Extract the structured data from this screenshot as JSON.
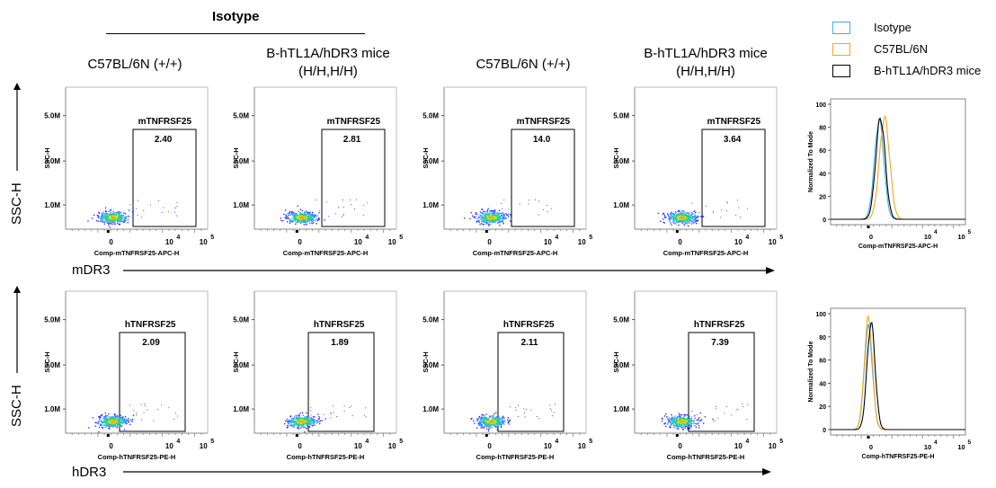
{
  "header": {
    "isotype": "Isotype",
    "columns": [
      [
        "C57BL/6N (+/+)"
      ],
      [
        "B-hTL1A/hDR3 mice",
        "(H/H,H/H)"
      ],
      [
        "C57BL/6N (+/+)"
      ],
      [
        "B-hTL1A/hDR3 mice",
        "(H/H,H/H)"
      ]
    ]
  },
  "legend": [
    {
      "label": "Isotype",
      "color": "#3fb0e0"
    },
    {
      "label": "C57BL/6N",
      "color": "#f5a623"
    },
    {
      "label": "B-hTL1A/hDR3 mice",
      "color": "#000000"
    }
  ],
  "rows": [
    {
      "ylabel": "SSC-H",
      "xlabel": "mDR3"
    },
    {
      "ylabel": "SSC-H",
      "xlabel": "hDR3"
    }
  ],
  "chart_data": [
    {
      "type": "scatter",
      "row": 0,
      "col": 0,
      "gate_label": "mTNFRSF25",
      "gate_value": "2.40",
      "xaxis_title": "Comp-mTNFRSF25-APC-H",
      "yaxis_title": "SSC-H",
      "yticks": [
        "5.0M",
        "3.0M",
        "1.0M"
      ],
      "xticks": [
        "0",
        "10",
        "10"
      ],
      "xtick_exp": [
        "",
        "4",
        "5"
      ]
    },
    {
      "type": "scatter",
      "row": 0,
      "col": 1,
      "gate_label": "mTNFRSF25",
      "gate_value": "2.81",
      "xaxis_title": "Comp-mTNFRSF25-APC-H",
      "yaxis_title": "SSC-H",
      "yticks": [
        "5.0M",
        "3.0M",
        "1.0M"
      ],
      "xticks": [
        "0",
        "10",
        "10"
      ],
      "xtick_exp": [
        "",
        "4",
        "5"
      ]
    },
    {
      "type": "scatter",
      "row": 0,
      "col": 2,
      "gate_label": "mTNFRSF25",
      "gate_value": "14.0",
      "xaxis_title": "Comp-mTNFRSF25-APC-H",
      "yaxis_title": "SSC-H",
      "yticks": [
        "5.0M",
        "3.0M",
        "1.0M"
      ],
      "xticks": [
        "0",
        "10",
        "10"
      ],
      "xtick_exp": [
        "",
        "4",
        "5"
      ]
    },
    {
      "type": "scatter",
      "row": 0,
      "col": 3,
      "gate_label": "mTNFRSF25",
      "gate_value": "3.64",
      "xaxis_title": "Comp-mTNFRSF25-APC-H",
      "yaxis_title": "SSC-H",
      "yticks": [
        "5.0M",
        "3.0M",
        "1.0M"
      ],
      "xticks": [
        "0",
        "10",
        "10"
      ],
      "xtick_exp": [
        "",
        "4",
        "5"
      ]
    },
    {
      "type": "line",
      "row": 0,
      "col": 4,
      "xaxis_title": "Comp-mTNFRSF25-APC-H",
      "yaxis_title": "Normalized To Mode",
      "yticks": [
        "100",
        "80",
        "60",
        "40",
        "20",
        "0"
      ],
      "xticks": [
        "0",
        "10",
        "10"
      ],
      "xtick_exp": [
        "",
        "4",
        "5"
      ],
      "ylim": [
        0,
        100
      ]
    },
    {
      "type": "scatter",
      "row": 1,
      "col": 0,
      "gate_label": "hTNFRSF25",
      "gate_value": "2.09",
      "xaxis_title": "Comp-hTNFRSF25-PE-H",
      "yaxis_title": "SSC-H",
      "yticks": [
        "5.0M",
        "3.0M",
        "1.0M"
      ],
      "xticks": [
        "0",
        "10",
        "10"
      ],
      "xtick_exp": [
        "",
        "4",
        "5"
      ]
    },
    {
      "type": "scatter",
      "row": 1,
      "col": 1,
      "gate_label": "hTNFRSF25",
      "gate_value": "1.89",
      "xaxis_title": "Comp-hTNFRSF25-PE-H",
      "yaxis_title": "SSC-H",
      "yticks": [
        "5.0M",
        "3.0M",
        "1.0M"
      ],
      "xticks": [
        "0",
        "10",
        "10"
      ],
      "xtick_exp": [
        "",
        "4",
        "5"
      ]
    },
    {
      "type": "scatter",
      "row": 1,
      "col": 2,
      "gate_label": "hTNFRSF25",
      "gate_value": "2.11",
      "xaxis_title": "Comp-hTNFRSF25-PE-H",
      "yaxis_title": "SSC-H",
      "yticks": [
        "5.0M",
        "3.0M",
        "1.0M"
      ],
      "xticks": [
        "0",
        "10",
        "10"
      ],
      "xtick_exp": [
        "",
        "4",
        "5"
      ]
    },
    {
      "type": "scatter",
      "row": 1,
      "col": 3,
      "gate_label": "hTNFRSF25",
      "gate_value": "7.39",
      "xaxis_title": "Comp-hTNFRSF25-PE-H",
      "yaxis_title": "SSC-H",
      "yticks": [
        "5.0M",
        "3.0M",
        "1.0M"
      ],
      "xticks": [
        "0",
        "10",
        "10"
      ],
      "xtick_exp": [
        "",
        "4",
        "5"
      ]
    },
    {
      "type": "line",
      "row": 1,
      "col": 4,
      "xaxis_title": "Comp-hTNFRSF25-PE-H",
      "yaxis_title": "Normalized To Mode",
      "yticks": [
        "100",
        "80",
        "60",
        "40",
        "20",
        "0"
      ],
      "xticks": [
        "0",
        "10",
        "10"
      ],
      "xtick_exp": [
        "",
        "4",
        "5"
      ],
      "ylim": [
        0,
        100
      ]
    }
  ]
}
